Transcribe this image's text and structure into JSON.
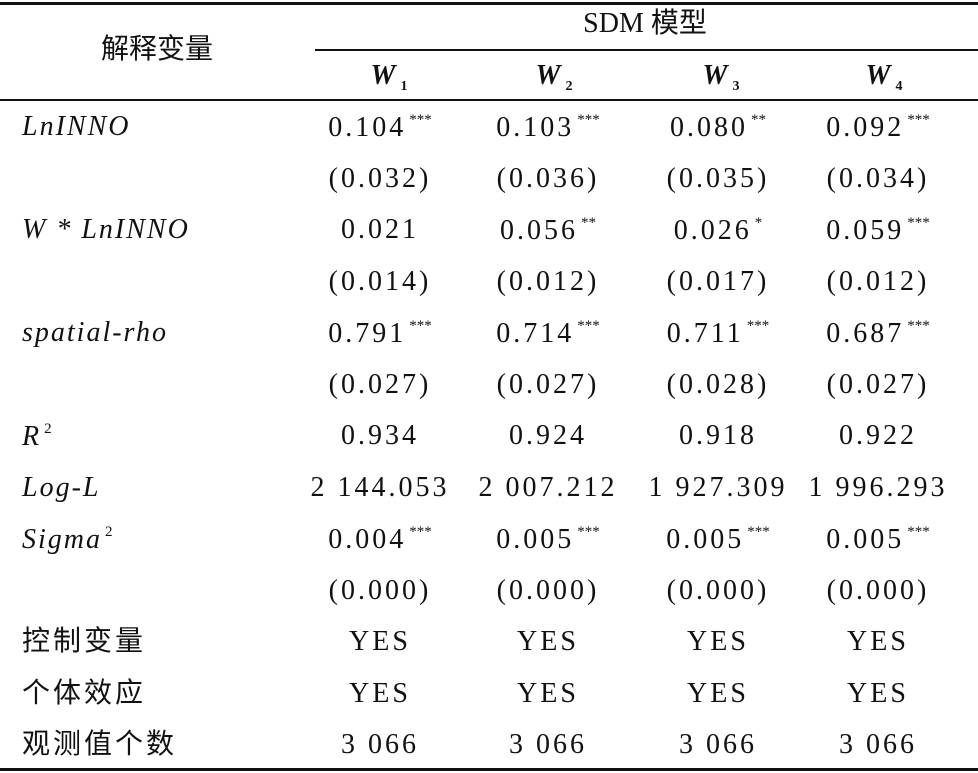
{
  "header": {
    "row_label": "解释变量",
    "group": "SDM 模型",
    "columns": [
      {
        "base": "W",
        "sub": "1"
      },
      {
        "base": "W",
        "sub": "2"
      },
      {
        "base": "W",
        "sub": "3"
      },
      {
        "base": "W",
        "sub": "4"
      }
    ]
  },
  "rows": [
    {
      "label": "LnINNO",
      "italic": true,
      "cells": [
        {
          "value": "0.104",
          "stars": "***"
        },
        {
          "value": "0.103",
          "stars": "***"
        },
        {
          "value": "0.080",
          "stars": "**"
        },
        {
          "value": "0.092",
          "stars": "***"
        }
      ]
    },
    {
      "cells": [
        {
          "value": "(0.032)"
        },
        {
          "value": "(0.036)"
        },
        {
          "value": "(0.035)"
        },
        {
          "value": "(0.034)"
        }
      ]
    },
    {
      "label": "W * LnINNO",
      "italic": true,
      "cells": [
        {
          "value": "0.021"
        },
        {
          "value": "0.056",
          "stars": "**"
        },
        {
          "value": "0.026",
          "stars": "*"
        },
        {
          "value": "0.059",
          "stars": "***"
        }
      ]
    },
    {
      "cells": [
        {
          "value": "(0.014)"
        },
        {
          "value": "(0.012)"
        },
        {
          "value": "(0.017)"
        },
        {
          "value": "(0.012)"
        }
      ]
    },
    {
      "label": "spatial-rho",
      "italic": true,
      "cells": [
        {
          "value": "0.791",
          "stars": "***"
        },
        {
          "value": "0.714",
          "stars": "***"
        },
        {
          "value": "0.711",
          "stars": "***"
        },
        {
          "value": "0.687",
          "stars": "***"
        }
      ]
    },
    {
      "cells": [
        {
          "value": "(0.027)"
        },
        {
          "value": "(0.027)"
        },
        {
          "value": "(0.028)"
        },
        {
          "value": "(0.027)"
        }
      ]
    },
    {
      "label": "R",
      "label_sup": "2",
      "italic": true,
      "cells": [
        {
          "value": "0.934"
        },
        {
          "value": "0.924"
        },
        {
          "value": "0.918"
        },
        {
          "value": "0.922"
        }
      ]
    },
    {
      "label": "Log-L",
      "italic": true,
      "cells": [
        {
          "value": "2 144.053"
        },
        {
          "value": "2 007.212"
        },
        {
          "value": "1 927.309"
        },
        {
          "value": "1 996.293"
        }
      ]
    },
    {
      "label": "Sigma",
      "label_sup": "2",
      "italic": true,
      "cells": [
        {
          "value": "0.004",
          "stars": "***"
        },
        {
          "value": "0.005",
          "stars": "***"
        },
        {
          "value": "0.005",
          "stars": "***"
        },
        {
          "value": "0.005",
          "stars": "***"
        }
      ]
    },
    {
      "cells": [
        {
          "value": "(0.000)"
        },
        {
          "value": "(0.000)"
        },
        {
          "value": "(0.000)"
        },
        {
          "value": "(0.000)"
        }
      ]
    },
    {
      "label": "控制变量",
      "cells": [
        {
          "value": "YES"
        },
        {
          "value": "YES"
        },
        {
          "value": "YES"
        },
        {
          "value": "YES"
        }
      ]
    },
    {
      "label": "个体效应",
      "cells": [
        {
          "value": "YES"
        },
        {
          "value": "YES"
        },
        {
          "value": "YES"
        },
        {
          "value": "YES"
        }
      ]
    },
    {
      "label": "观测值个数",
      "cells": [
        {
          "value": "3 066"
        },
        {
          "value": "3 066"
        },
        {
          "value": "3 066"
        },
        {
          "value": "3 066"
        }
      ]
    }
  ]
}
